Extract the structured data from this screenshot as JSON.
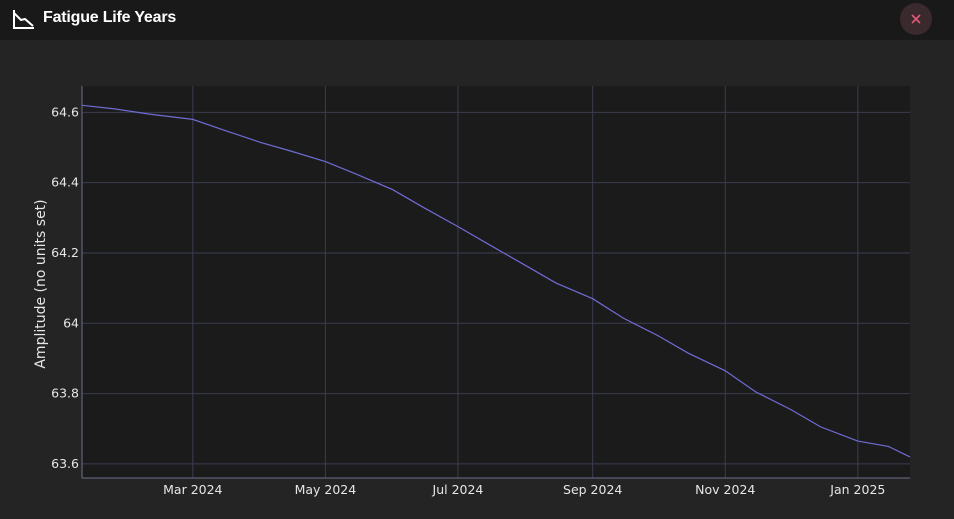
{
  "window": {
    "title": "Fatigue Life Years",
    "title_icon": "chart-line-down-icon",
    "close_icon": "close-icon",
    "close_color": "#e05a78"
  },
  "chart_data": {
    "type": "line",
    "title": "",
    "xlabel": "",
    "ylabel": "Amplitude (no units set)",
    "x_range": [
      "2024-01-10",
      "2025-01-25"
    ],
    "ylim": [
      63.56,
      64.675
    ],
    "x_ticks": [
      {
        "date": "2024-03-01",
        "label": "Mar 2024"
      },
      {
        "date": "2024-05-01",
        "label": "May 2024"
      },
      {
        "date": "2024-07-01",
        "label": "Jul 2024"
      },
      {
        "date": "2024-09-01",
        "label": "Sep 2024"
      },
      {
        "date": "2024-11-01",
        "label": "Nov 2024"
      },
      {
        "date": "2025-01-01",
        "label": "Jan 2025"
      }
    ],
    "y_ticks": [
      {
        "value": 64.6,
        "label": "64.6"
      },
      {
        "value": 64.4,
        "label": "64.4"
      },
      {
        "value": 64.2,
        "label": "64.2"
      },
      {
        "value": 64.0,
        "label": "64"
      },
      {
        "value": 63.8,
        "label": "63.8"
      },
      {
        "value": 63.6,
        "label": "63.6"
      }
    ],
    "grid": true,
    "colors": {
      "plot_bg": "#1b1b1b",
      "grid": "#3a3d52",
      "axis_line": "#6b6f8a",
      "series": "#6f6cd6"
    },
    "series": [
      {
        "x": [
          "2024-01-10",
          "2024-01-25",
          "2024-02-10",
          "2024-03-01",
          "2024-03-15",
          "2024-04-01",
          "2024-04-15",
          "2024-05-01",
          "2024-05-15",
          "2024-06-01",
          "2024-06-15",
          "2024-07-01",
          "2024-07-15",
          "2024-08-01",
          "2024-08-15",
          "2024-09-01",
          "2024-09-15",
          "2024-10-01",
          "2024-10-15",
          "2024-11-01",
          "2024-11-15",
          "2024-12-01",
          "2024-12-15",
          "2025-01-01",
          "2025-01-15",
          "2025-01-25"
        ],
        "y": [
          64.62,
          64.61,
          64.595,
          64.58,
          64.55,
          64.515,
          64.49,
          64.46,
          64.425,
          64.38,
          64.33,
          64.275,
          64.225,
          64.165,
          64.115,
          64.07,
          64.015,
          63.965,
          63.915,
          63.865,
          63.805,
          63.755,
          63.705,
          63.665,
          63.65,
          63.62
        ]
      }
    ]
  }
}
